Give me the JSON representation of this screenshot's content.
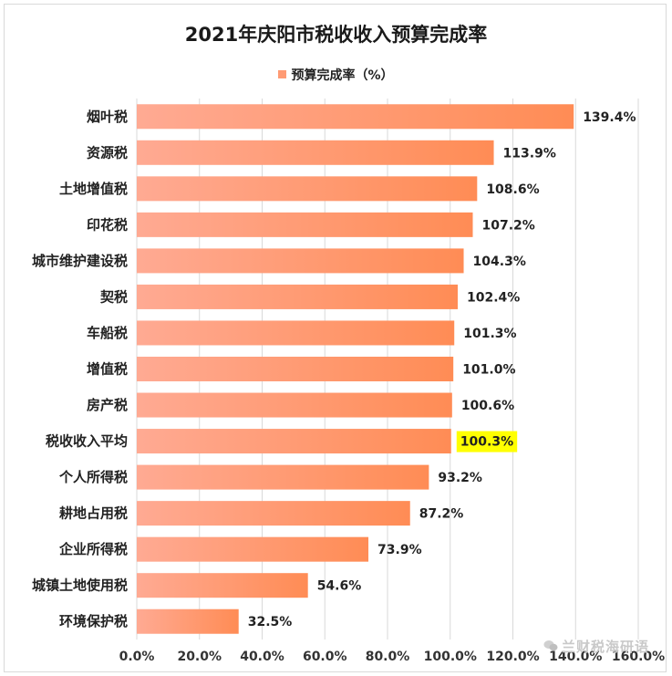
{
  "chart_data": {
    "type": "bar",
    "orientation": "horizontal",
    "title": "2021年庆阳市税收收入预算完成率",
    "categories": [
      "烟叶税",
      "资源税",
      "土地增值税",
      "印花税",
      "城市维护建设税",
      "契税",
      "车船税",
      "增值税",
      "房产税",
      "税收收入平均",
      "个人所得税",
      "耕地占用税",
      "企业所得税",
      "城镇土地使用税",
      "环境保护税"
    ],
    "series": [
      {
        "name": "预算完成率（%）",
        "values": [
          139.4,
          113.9,
          108.6,
          107.2,
          104.3,
          102.4,
          101.3,
          101.0,
          100.6,
          100.3,
          93.2,
          87.2,
          73.9,
          54.6,
          32.5
        ],
        "data_labels": [
          "139.4%",
          "113.9%",
          "108.6%",
          "107.2%",
          "104.3%",
          "102.4%",
          "101.3%",
          "101.0%",
          "100.6%",
          "100.3%",
          "93.2%",
          "87.2%",
          "73.9%",
          "54.6%",
          "32.5%"
        ]
      }
    ],
    "highlight_category": "税收收入平均",
    "xlim": [
      0,
      160
    ],
    "x_ticks": [
      "0.0%",
      "20.0%",
      "40.0%",
      "60.0%",
      "80.0%",
      "100.0%",
      "120.0%",
      "140.0%",
      "160.0%"
    ],
    "grid": "vertical",
    "legend_position": "top",
    "colors": {
      "bar_start": "#ffaa93",
      "bar_end": "#ff8c55",
      "highlight_bg": "#ffff00",
      "grid": "#d9d9d9"
    }
  },
  "watermark": "兰财税海研语"
}
